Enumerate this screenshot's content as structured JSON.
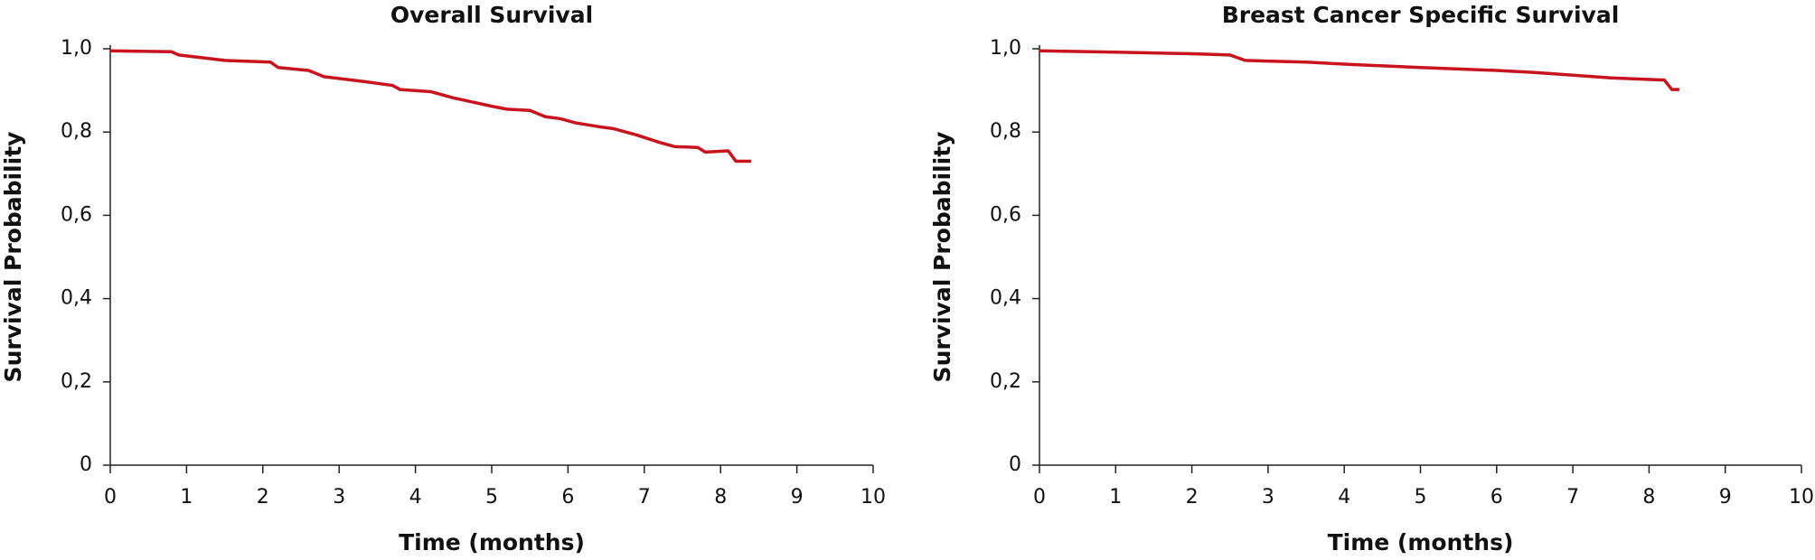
{
  "chart_data": [
    {
      "type": "line",
      "title": "Overall Survival",
      "xlabel": "Time (months)",
      "ylabel": "Survival Probability",
      "color": "#c8141e",
      "x": [
        0,
        0.8,
        0.9,
        1.5,
        2.1,
        2.2,
        2.6,
        2.8,
        3.3,
        3.7,
        3.8,
        4.2,
        4.5,
        5,
        5.2,
        5.5,
        5.7,
        5.9,
        6.1,
        6.4,
        6.6,
        6.9,
        7.2,
        7.4,
        7.7,
        7.8,
        8.1,
        8.2,
        8.4
      ],
      "values": [
        0.995,
        0.993,
        0.985,
        0.972,
        0.968,
        0.955,
        0.948,
        0.933,
        0.922,
        0.912,
        0.902,
        0.897,
        0.882,
        0.862,
        0.855,
        0.852,
        0.837,
        0.832,
        0.822,
        0.813,
        0.808,
        0.793,
        0.775,
        0.765,
        0.763,
        0.752,
        0.755,
        0.73,
        0.73
      ],
      "xlim": [
        0,
        10
      ],
      "xticks": [
        0,
        1,
        2,
        3,
        4,
        5,
        6,
        7,
        8,
        9,
        10
      ],
      "ylim": [
        0,
        1
      ],
      "yticks": [
        0,
        {
          "value": 0.2,
          "label": "0,2"
        },
        {
          "value": 0.4,
          "label": "0,4"
        },
        {
          "value": 0.6,
          "label": "0,6"
        },
        {
          "value": 0.8,
          "label": "0,8"
        },
        {
          "value": 1,
          "label": "1,0"
        }
      ]
    },
    {
      "type": "line",
      "title": "Breast Cancer Specific Survival",
      "xlabel": "Time (months)",
      "ylabel": "Survival Probability",
      "color": "#c8141e",
      "x": [
        0,
        1,
        2,
        2.5,
        2.7,
        3.5,
        4,
        5,
        6,
        6.5,
        7.5,
        8.2,
        8.3,
        8.4
      ],
      "values": [
        0.995,
        0.992,
        0.988,
        0.985,
        0.972,
        0.968,
        0.963,
        0.955,
        0.948,
        0.943,
        0.93,
        0.925,
        0.902,
        0.902
      ],
      "xlim": [
        0,
        10
      ],
      "xticks": [
        0,
        1,
        2,
        3,
        4,
        5,
        6,
        7,
        8,
        9,
        10
      ],
      "ylim": [
        0,
        1
      ],
      "yticks": [
        0,
        {
          "value": 0.2,
          "label": "0,2"
        },
        {
          "value": 0.4,
          "label": "0,4"
        },
        {
          "value": 0.6,
          "label": "0,6"
        },
        {
          "value": 0.8,
          "label": "0,8"
        },
        {
          "value": 1,
          "label": "1,0"
        }
      ]
    }
  ]
}
